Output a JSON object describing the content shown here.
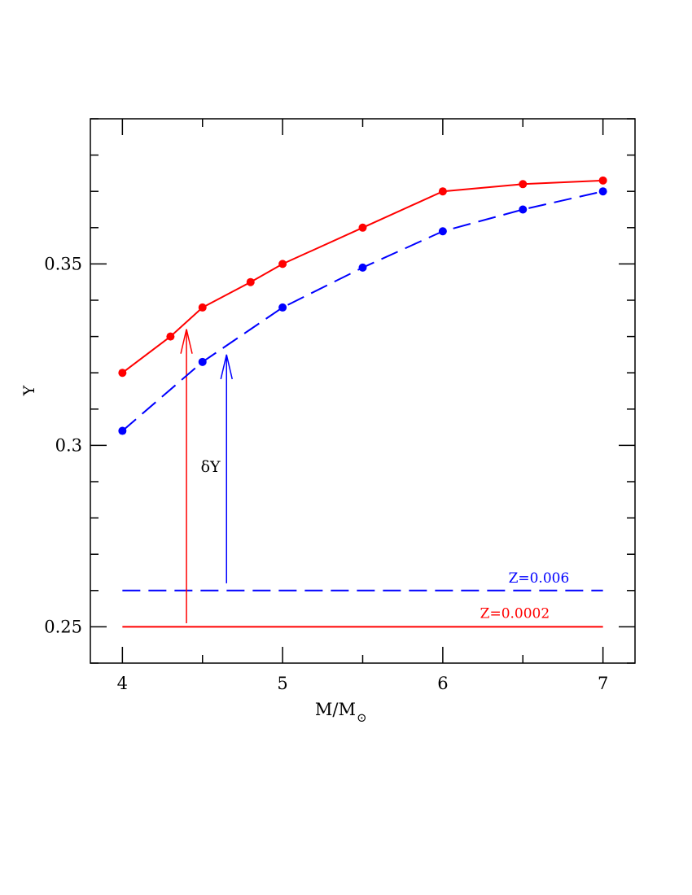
{
  "chart_data": {
    "type": "line",
    "title": "",
    "xlabel": "M/M",
    "xlabel_subscript": "⊙",
    "ylabel": "Y",
    "xlim": [
      3.8,
      7.2
    ],
    "ylim": [
      0.24,
      0.39
    ],
    "x_ticks": [
      4,
      5,
      6,
      7
    ],
    "x_tick_labels": [
      "4",
      "5",
      "6",
      "7"
    ],
    "y_ticks": [
      0.25,
      0.3,
      0.35
    ],
    "y_tick_labels": [
      "0.25",
      "0.3",
      "0.35"
    ],
    "grid": false,
    "colors": {
      "red": "#ff0000",
      "blue": "#0000ff",
      "axis": "#000000"
    },
    "series": [
      {
        "color": "#ff0000",
        "dash": "solid",
        "x": [
          4.0,
          4.3,
          4.5,
          4.8,
          5.0,
          5.5,
          6.0,
          6.5,
          7.0
        ],
        "y": [
          0.32,
          0.33,
          0.338,
          0.345,
          0.35,
          0.36,
          0.37,
          0.372,
          0.373
        ]
      },
      {
        "color": "#0000ff",
        "dash": "long-dash",
        "x": [
          4.0,
          4.5,
          5.0,
          5.5,
          6.0,
          6.5,
          7.0
        ],
        "y": [
          0.304,
          0.323,
          0.338,
          0.349,
          0.359,
          0.365,
          0.37
        ]
      }
    ],
    "reference_lines": [
      {
        "label": "Z=0.0002",
        "y": 0.25,
        "x_range": [
          4.0,
          7.0
        ],
        "color": "#ff0000",
        "dash": "solid"
      },
      {
        "label": "Z=0.006",
        "y": 0.26,
        "x_range": [
          4.0,
          7.0
        ],
        "color": "#0000ff",
        "dash": "long-dash"
      }
    ],
    "arrows": [
      {
        "x": 4.4,
        "y_from": 0.251,
        "y_to": 0.332,
        "color": "#ff0000"
      },
      {
        "x": 4.65,
        "y_from": 0.262,
        "y_to": 0.325,
        "color": "#0000ff"
      }
    ],
    "annotation": {
      "text": "δY",
      "x": 4.55,
      "y": 0.294
    }
  }
}
